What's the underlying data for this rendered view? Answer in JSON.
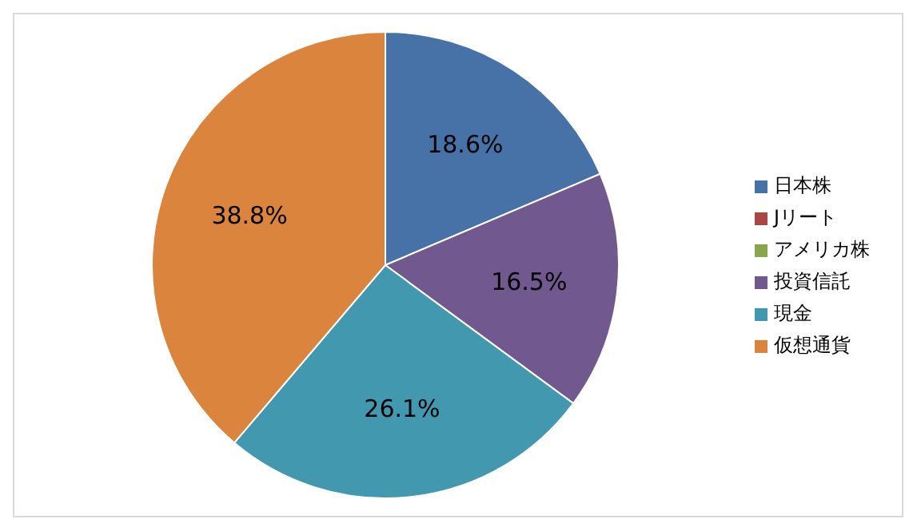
{
  "chart_data": {
    "type": "pie",
    "categories": [
      "日本株",
      "Jリート",
      "アメリカ株",
      "投資信託",
      "現金",
      "仮想通貨"
    ],
    "values": [
      18.6,
      0,
      0,
      16.5,
      26.1,
      38.8
    ],
    "colors": [
      "#4672a8",
      "#aa4643",
      "#89a54e",
      "#71588f",
      "#4198af",
      "#db843d"
    ],
    "value_labels": [
      "18.6%",
      null,
      null,
      "16.5%",
      "26.1%",
      "38.8%"
    ],
    "legend": "right"
  }
}
